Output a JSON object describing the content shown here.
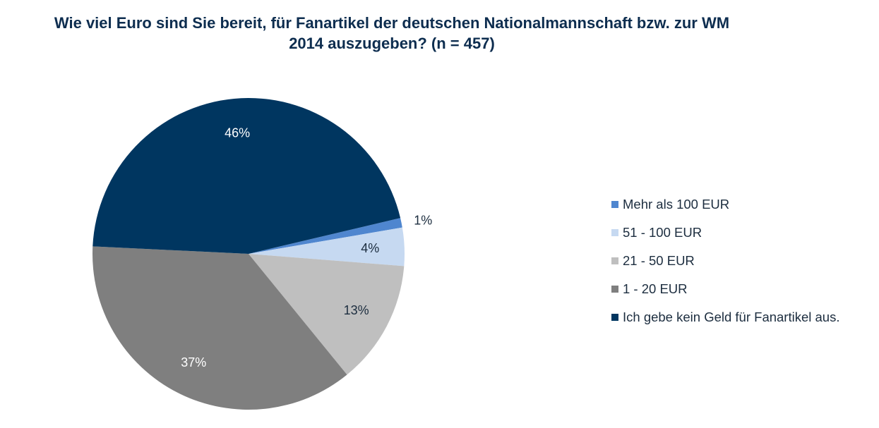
{
  "chart_data": {
    "type": "pie",
    "title_lines": [
      "Wie viel Euro sind Sie bereit, für Fanartikel der deutschen Nationalmannschaft bzw. zur WM",
      "2014 auszugeben? (n = 457)"
    ],
    "unit": "%",
    "legend_position": "right",
    "slices": [
      {
        "name": "Mehr als 100 EUR",
        "value": 1,
        "label": "1%",
        "color": "#4f86cf"
      },
      {
        "name": "51 - 100 EUR",
        "value": 4,
        "label": "4%",
        "color": "#c6d9f1"
      },
      {
        "name": "21 - 50 EUR",
        "value": 13,
        "label": "13%",
        "color": "#bfbfbf"
      },
      {
        "name": "1 - 20 EUR",
        "value": 37,
        "label": "37%",
        "color": "#7f7f7f"
      },
      {
        "name": "Ich gebe kein Geld für Fanartikel aus.",
        "value": 46,
        "label": "46%",
        "color": "#003660"
      }
    ]
  }
}
